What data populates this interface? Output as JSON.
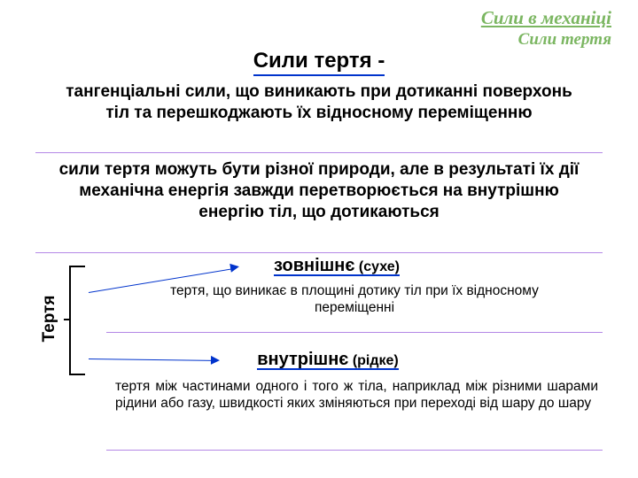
{
  "colors": {
    "header_color": "#7bb661",
    "title_underline_color": "#0033cc",
    "hr_color": "#b488e6",
    "arrow_color": "#0033cc",
    "sec_underline_color": "#0033cc",
    "text_color": "#000000"
  },
  "header": {
    "line1": "Сили в механіці",
    "line2": "Сили тертя"
  },
  "title": "Сили тертя -",
  "para1": "тангенціальні сили, що виникають при дотиканні поверхонь тіл та перешкоджають їх відносному переміщенню",
  "para2": "сили тертя можуть бути різної природи, але в результаті їх дії механічна енергія завжди перетворюється на внутрішню енергію тіл, що дотикаються",
  "vertical_label": "Тертя",
  "sections": [
    {
      "title_main": "зовнішнє",
      "title_paren": "(сухе)",
      "title_fontsize_main": 20,
      "title_fontsize_paren": 16,
      "desc": "тертя, що виникає в площині дотику тіл при їх відносному переміщенні",
      "desc_align": "center"
    },
    {
      "title_main": "внутрішнє",
      "title_paren": "(рідке)",
      "title_fontsize_main": 20,
      "title_fontsize_paren": 16,
      "desc": "тертя між частинами одного і того ж тіла, наприклад між різними шарами рідини або газу, швидкості яких зміняються при переході від шару до шару",
      "desc_align": "justify"
    }
  ]
}
